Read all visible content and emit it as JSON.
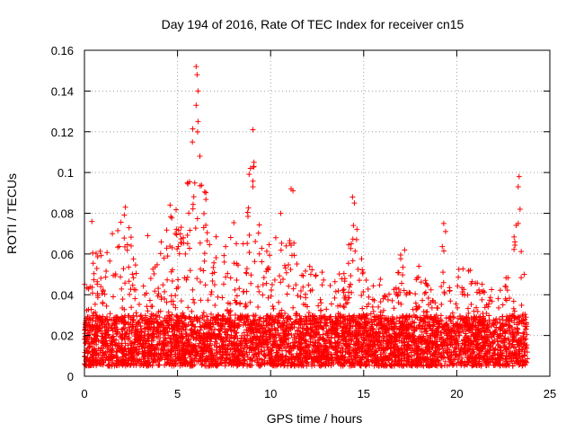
{
  "chart_data": {
    "type": "scatter",
    "title": "Day 194 of 2016, Rate Of TEC Index for receiver cn15",
    "xlabel": "GPS time / hours",
    "ylabel": "ROTI / TECUs",
    "xlim": [
      0,
      25
    ],
    "ylim": [
      0,
      0.16
    ],
    "x_ticks": [
      0,
      5,
      10,
      15,
      20,
      25
    ],
    "x_tick_labels": [
      "0",
      "5",
      "10",
      "15",
      "20",
      "25"
    ],
    "y_ticks": [
      0,
      0.02,
      0.04,
      0.06,
      0.08,
      0.1,
      0.12,
      0.14,
      0.16
    ],
    "y_tick_labels": [
      "0",
      "0.02",
      "0.04",
      "0.06",
      "0.08",
      "0.1",
      "0.12",
      "0.14",
      "0.16"
    ],
    "grid": true,
    "marker": "+",
    "color": "#ff0000",
    "x_data_range": [
      0,
      23.8
    ],
    "baseline_level": [
      0.005,
      0.03
    ],
    "envelope": [
      [
        0,
        0.05
      ],
      [
        0.3,
        0.068
      ],
      [
        0.5,
        0.078
      ],
      [
        1,
        0.06
      ],
      [
        1.5,
        0.065
      ],
      [
        1.8,
        0.078
      ],
      [
        2.2,
        0.083
      ],
      [
        2.8,
        0.055
      ],
      [
        3,
        0.069
      ],
      [
        3.5,
        0.045
      ],
      [
        4,
        0.068
      ],
      [
        4.5,
        0.079
      ],
      [
        4.6,
        0.084
      ],
      [
        5.2,
        0.08
      ],
      [
        5.6,
        0.1
      ],
      [
        5.9,
        0.135
      ],
      [
        6.05,
        0.152
      ],
      [
        6.3,
        0.101
      ],
      [
        7,
        0.085
      ],
      [
        7.5,
        0.07
      ],
      [
        8,
        0.079
      ],
      [
        8.5,
        0.065
      ],
      [
        9,
        0.121
      ],
      [
        9.3,
        0.08
      ],
      [
        9.8,
        0.065
      ],
      [
        10.5,
        0.081
      ],
      [
        11,
        0.092
      ],
      [
        11.5,
        0.05
      ],
      [
        12,
        0.055
      ],
      [
        13,
        0.05
      ],
      [
        13.5,
        0.058
      ],
      [
        14,
        0.05
      ],
      [
        14.5,
        0.088
      ],
      [
        15,
        0.057
      ],
      [
        15.5,
        0.045
      ],
      [
        16,
        0.05
      ],
      [
        16.5,
        0.043
      ],
      [
        17,
        0.062
      ],
      [
        17.5,
        0.05
      ],
      [
        18,
        0.055
      ],
      [
        18.5,
        0.045
      ],
      [
        19,
        0.06
      ],
      [
        19.3,
        0.075
      ],
      [
        19.7,
        0.05
      ],
      [
        20.5,
        0.055
      ],
      [
        21,
        0.05
      ],
      [
        21.5,
        0.045
      ],
      [
        22,
        0.05
      ],
      [
        22.5,
        0.045
      ],
      [
        23,
        0.07
      ],
      [
        23.3,
        0.098
      ],
      [
        23.6,
        0.06
      ],
      [
        23.8,
        0.05
      ]
    ],
    "spikes": [
      [
        0.4,
        0.076
      ],
      [
        1.5,
        0.07
      ],
      [
        2.2,
        0.083
      ],
      [
        3.4,
        0.069
      ],
      [
        4.6,
        0.084
      ],
      [
        5.8,
        0.115
      ],
      [
        6.0,
        0.152
      ],
      [
        6.05,
        0.148
      ],
      [
        6.1,
        0.14
      ],
      [
        6.0,
        0.133
      ],
      [
        6.1,
        0.125
      ],
      [
        6.2,
        0.108
      ],
      [
        9.05,
        0.121
      ],
      [
        9.1,
        0.103
      ],
      [
        9.05,
        0.093
      ],
      [
        11.1,
        0.092
      ],
      [
        11.2,
        0.091
      ],
      [
        14.4,
        0.088
      ],
      [
        14.5,
        0.085
      ],
      [
        14.45,
        0.074
      ],
      [
        17.2,
        0.062
      ],
      [
        19.3,
        0.075
      ],
      [
        19.4,
        0.071
      ],
      [
        23.35,
        0.098
      ],
      [
        23.3,
        0.093
      ],
      [
        23.4,
        0.082
      ],
      [
        23.3,
        0.075
      ]
    ]
  }
}
